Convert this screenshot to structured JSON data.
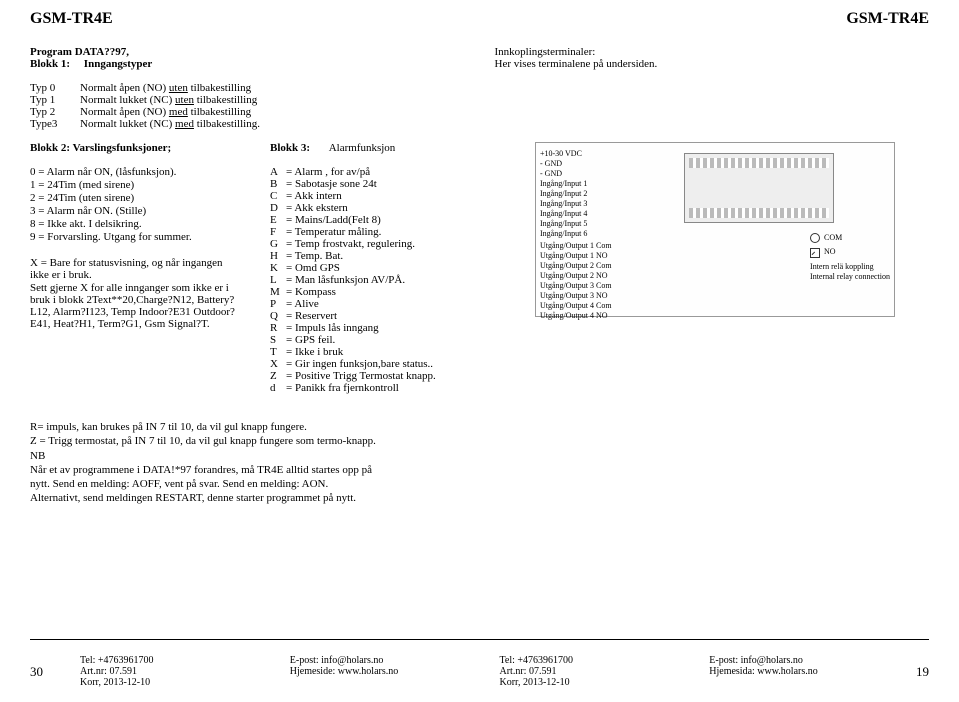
{
  "header": {
    "left": "GSM-TR4E",
    "right": "GSM-TR4E"
  },
  "program": {
    "line1": "Program DATA??97,",
    "blokk1_label": "Blokk 1:",
    "blokk1_val": "Inngangstyper",
    "types": [
      {
        "key": "Typ 0",
        "pre": "Normalt åpen (NO) ",
        "u": "uten",
        "post": " tilbakestilling"
      },
      {
        "key": "Typ 1",
        "pre": "Normalt lukket (NC) ",
        "u": "uten",
        "post": " tilbakestilling"
      },
      {
        "key": "Typ 2",
        "pre": "Normalt åpen (NO) ",
        "u": "med",
        "post": "  tilbakestilling"
      },
      {
        "key": "Type3",
        "pre": "Normalt lukket (NC) ",
        "u": "med",
        "post": " tilbakestilling."
      }
    ]
  },
  "innkopling": {
    "title": "Innkoplingsterminaler:",
    "sub": "Her vises terminalene på undersiden."
  },
  "blokk2": {
    "title": "Blokk 2: Varslingsfunksjoner;",
    "lines": [
      "0 = Alarm når ON, (låsfunksjon).",
      "1 = 24Tim (med sirene)",
      "2 = 24Tim (uten sirene)",
      "3 = Alarm når ON. (Stille)",
      "8 = Ikke akt. I delsikring.",
      "9 = Forvarsling. Utgang for summer.",
      "",
      "X =  Bare for statusvisning, og når ingangen ikke er i bruk.",
      "Sett gjerne X for alle innganger som ikke er i bruk i blokk 2Text**20,Charge?N12, Battery?L12, Alarm?I123, Temp Indoor?E31 Outdoor?E41, Heat?H1, Term?G1, Gsm Signal?T."
    ]
  },
  "blokk3": {
    "title_label": "Blokk 3:",
    "title_val": "Alarmfunksjon",
    "items": [
      {
        "k": "A",
        "v": "= Alarm , for av/på"
      },
      {
        "k": "B",
        "v": "= Sabotasje sone 24t"
      },
      {
        "k": "C",
        "v": "= Akk intern"
      },
      {
        "k": "D",
        "v": "= Akk ekstern"
      },
      {
        "k": "E",
        "v": "= Mains/Ladd(Felt 8)"
      },
      {
        "k": "F",
        "v": "= Temperatur måling."
      },
      {
        "k": "G",
        "v": "= Temp frostvakt, regulering."
      },
      {
        "k": "H",
        "v": "= Temp. Bat."
      },
      {
        "k": "K",
        "v": "= Omd GPS"
      },
      {
        "k": "L",
        "v": "= Man låsfunksjon AV/PÅ."
      },
      {
        "k": "M",
        "v": "= Kompass"
      },
      {
        "k": "P",
        "v": "= Alive"
      },
      {
        "k": "Q",
        "v": "= Reservert"
      },
      {
        "k": "R",
        "v": "= Impuls lås inngang"
      },
      {
        "k": "S",
        "v": "= GPS feil."
      },
      {
        "k": "T",
        "v": "= Ikke i bruk"
      },
      {
        "k": "X",
        "v": "= Gir ingen funksjon,bare status.."
      },
      {
        "k": "Z",
        "v": "= Positive Trigg Termostat knapp."
      },
      {
        "k": "d",
        "v": "= Panikk fra fjernkontroll"
      }
    ]
  },
  "diagram": {
    "left_labels": [
      "+10-30 VDC",
      "- GND",
      "- GND",
      "Ingång/Input 1",
      "Ingång/Input 2",
      "Ingång/Input 3",
      "Ingång/Input 4",
      "Ingång/Input 5",
      "Ingång/Input 6"
    ],
    "out_labels": [
      "Utgång/Output 1 Com",
      "Utgång/Output 1 NO",
      "Utgång/Output 2 Com",
      "Utgång/Output 2 NO",
      "Utgång/Output 3 Com",
      "Utgång/Output 3 NO",
      "Utgång/Output 4 Com",
      "Utgång/Output 4 NO"
    ],
    "right_labels": [
      "COM",
      "NO",
      "Intern relä koppling",
      "Internal relay connection"
    ]
  },
  "notes": {
    "l1": "R= impuls, kan brukes på  IN 7 til 10, da vil gul knapp fungere.",
    "l2": "Z = Trigg termostat, på IN 7 til 10, da vil gul knapp fungere som termo-knapp.",
    "nb": "NB",
    "l3a": "Når et av programmene i DATA!*97 forandres, må TR4E alltid startes opp på",
    "l3b": "nytt. Send en melding: AOFF,  vent på svar. Send en melding: AON.",
    "l4": "Alternativt, send meldingen RESTART, denne starter programmet på nytt."
  },
  "footer": {
    "page_left": "30",
    "page_right": "19",
    "cols": [
      {
        "tel": "Tel:  +4763961700",
        "art": "Art.nr: 07.591",
        "korr": "Korr, 2013-12-10"
      },
      {
        "epost": "E-post: info@holars.no",
        "hjem": "Hjemeside: www.holars.no"
      },
      {
        "tel": "Tel:  +4763961700",
        "art": "Art.nr: 07.591",
        "korr": "Korr, 2013-12-10"
      },
      {
        "epost": "E-post: info@holars.no",
        "hjem": "Hjemesida: www.holars.no"
      }
    ]
  }
}
